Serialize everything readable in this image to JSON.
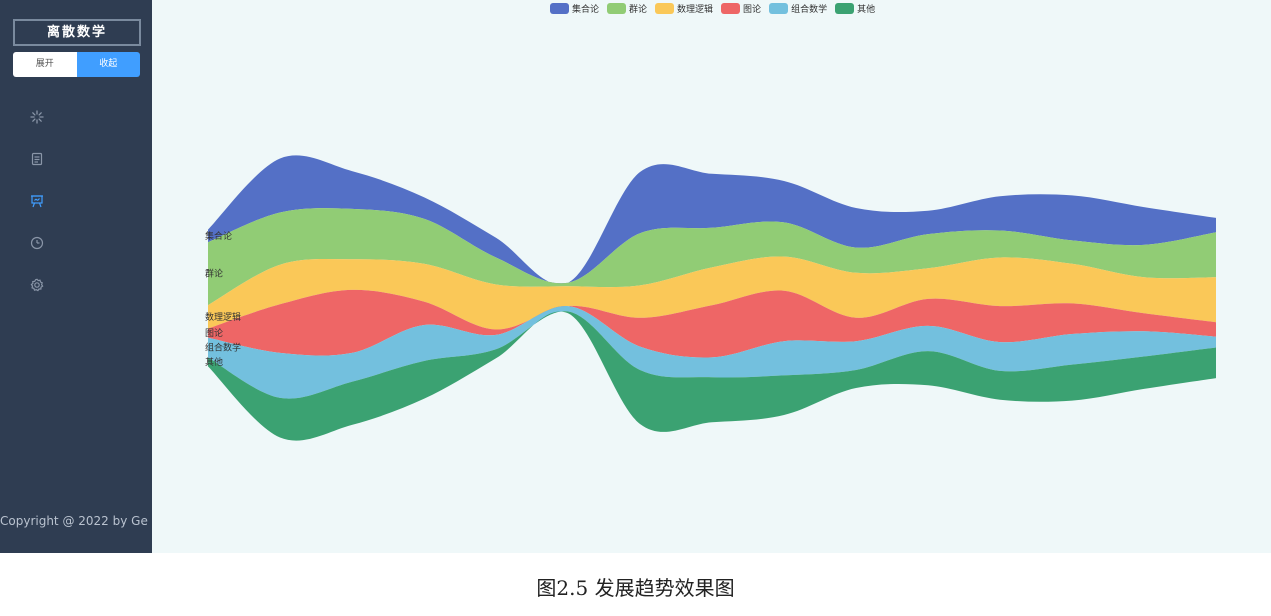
{
  "sidebar": {
    "title": "离散数学",
    "expand_label": "展开",
    "collapse_label": "收起",
    "nav_icons": [
      "loading-icon",
      "document-icon",
      "presentation-icon",
      "clock-icon",
      "settings-icon"
    ],
    "active_index": 2,
    "copyright": "Copyright @ 2022 by Ge",
    "colors": {
      "background": "#2f3d52",
      "icon": "#8a96a8",
      "active": "#409eff"
    }
  },
  "caption": "图2.5 发展趋势效果图",
  "chart_data": {
    "type": "area",
    "series": [
      {
        "name": "集合论",
        "color": "#5470c6",
        "values": [
          7,
          30,
          21,
          12,
          11,
          0,
          34,
          30,
          23,
          22,
          13,
          19,
          25,
          21,
          8
        ]
      },
      {
        "name": "群论",
        "color": "#91cc75",
        "values": [
          35,
          29,
          28,
          25,
          15,
          2,
          29,
          22,
          19,
          14,
          19,
          15,
          13,
          18,
          25
        ]
      },
      {
        "name": "数理逻辑",
        "color": "#fac858",
        "values": [
          13,
          22,
          17,
          21,
          25,
          11,
          18,
          21,
          19,
          25,
          17,
          27,
          22,
          20,
          25
        ]
      },
      {
        "name": "图论",
        "color": "#ee6666",
        "values": [
          5,
          27,
          35,
          13,
          3,
          0,
          16,
          29,
          28,
          13,
          15,
          20,
          17,
          10,
          8
        ]
      },
      {
        "name": "组合数学",
        "color": "#73c0de",
        "values": [
          11,
          25,
          16,
          20,
          8,
          3,
          13,
          11,
          19,
          16,
          14,
          16,
          17,
          14,
          6
        ]
      },
      {
        "name": "其他",
        "color": "#3ba272",
        "values": [
          5,
          22,
          24,
          21,
          5,
          1,
          30,
          25,
          22,
          10,
          19,
          16,
          20,
          18,
          17
        ]
      }
    ],
    "legend_position": "top-center",
    "grid": false
  }
}
